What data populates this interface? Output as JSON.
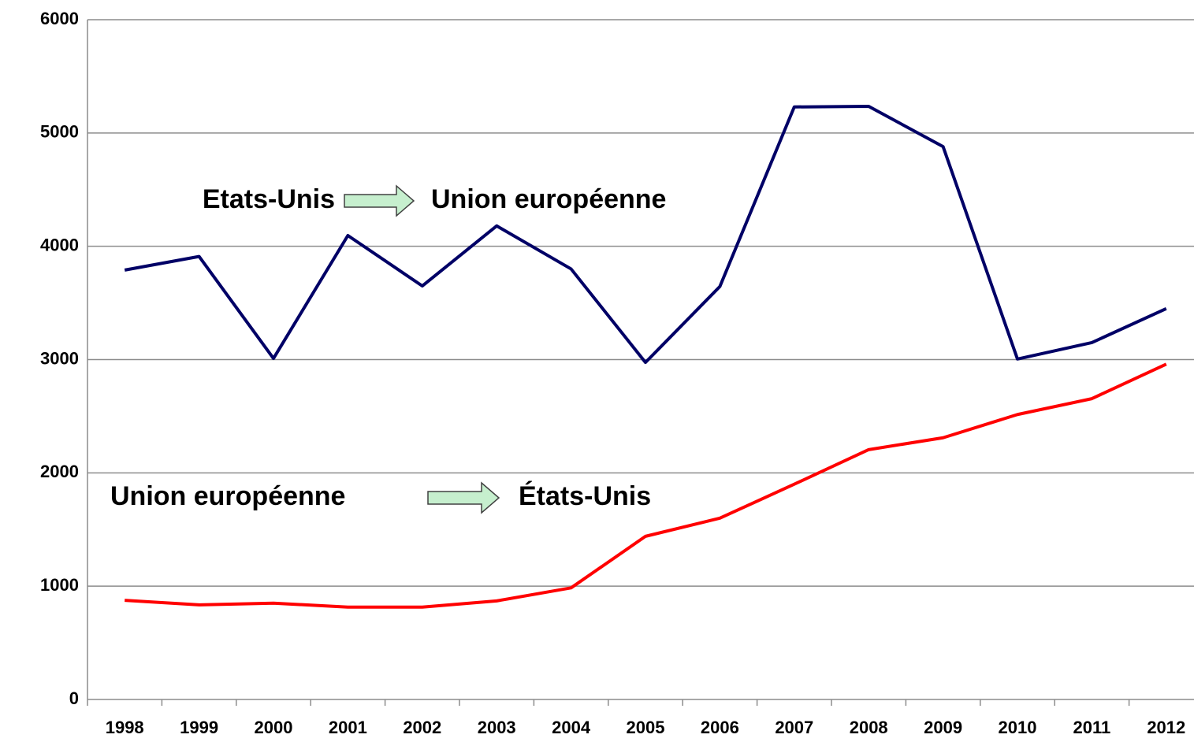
{
  "chart_data": {
    "type": "line",
    "categories": [
      "1998",
      "1999",
      "2000",
      "2001",
      "2002",
      "2003",
      "2004",
      "2005",
      "2006",
      "2007",
      "2008",
      "2009",
      "2010",
      "2011",
      "2012"
    ],
    "series": [
      {
        "from": "Etats-Unis",
        "to": "Union européenne",
        "color": "#000066",
        "values": [
          3790,
          3910,
          3010,
          4095,
          3650,
          4180,
          3800,
          2975,
          3645,
          5230,
          5235,
          4880,
          3005,
          3150,
          3450
        ]
      },
      {
        "from": "Union européenne",
        "to": "États-Unis",
        "color": "#ff0000",
        "values": [
          875,
          835,
          850,
          815,
          815,
          870,
          985,
          1440,
          1600,
          1900,
          2205,
          2310,
          2515,
          2655,
          2960
        ]
      }
    ],
    "ylim": [
      0,
      6000
    ],
    "yticks": [
      0,
      1000,
      2000,
      3000,
      4000,
      5000,
      6000
    ],
    "grid": true
  }
}
